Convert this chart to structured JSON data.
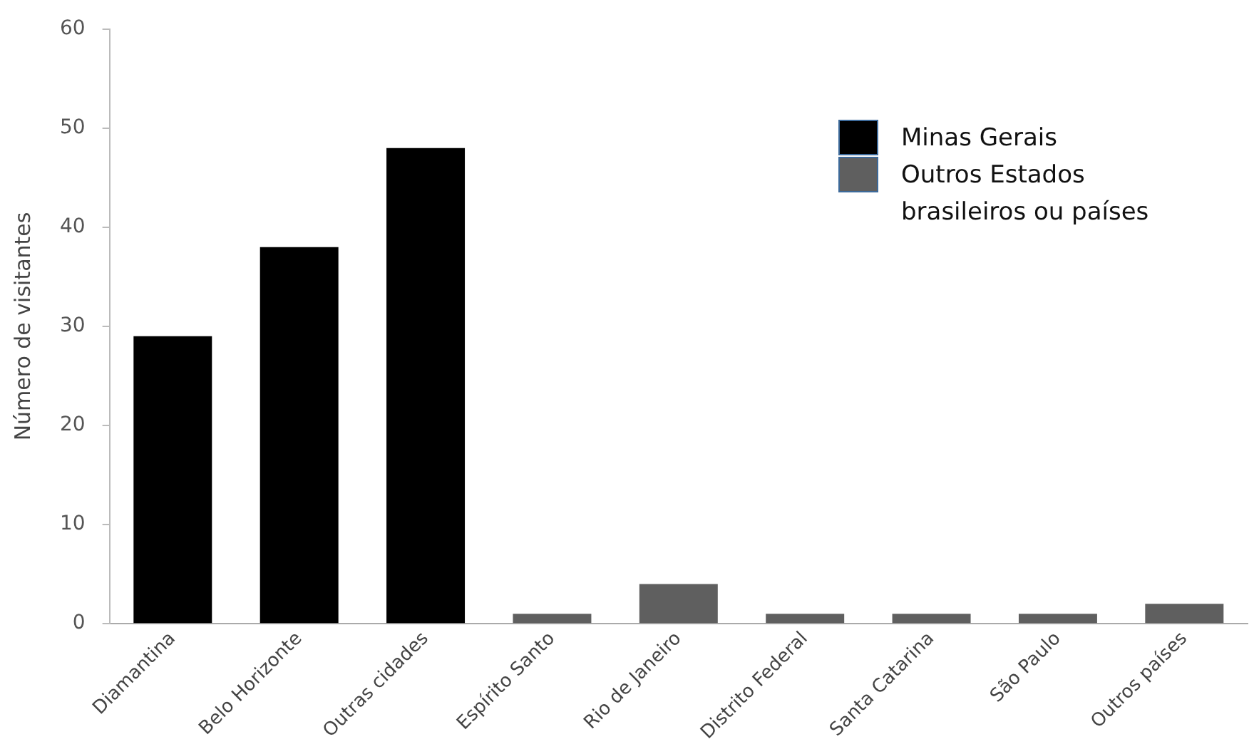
{
  "chart_data": {
    "type": "bar",
    "ylabel": "Número de visitantes",
    "categories": [
      "Diamantina",
      "Belo Horizonte",
      "Outras cidades",
      "Espírito Santo",
      "Rio de Janeiro",
      "Distrito Federal",
      "Santa Catarina",
      "São Paulo",
      "Outros países"
    ],
    "series": [
      {
        "name": "Minas Gerais",
        "color": "#000000",
        "values": [
          29,
          38,
          48,
          null,
          null,
          null,
          null,
          null,
          null
        ]
      },
      {
        "name": "Outros Estados brasileiros ou países",
        "color": "#5f5f5f",
        "values": [
          null,
          null,
          null,
          1,
          4,
          1,
          1,
          1,
          2
        ]
      }
    ],
    "ylim": [
      0,
      60
    ],
    "yticks": [
      0,
      10,
      20,
      30,
      40,
      50,
      60
    ],
    "grid": false,
    "legend": "top right"
  }
}
